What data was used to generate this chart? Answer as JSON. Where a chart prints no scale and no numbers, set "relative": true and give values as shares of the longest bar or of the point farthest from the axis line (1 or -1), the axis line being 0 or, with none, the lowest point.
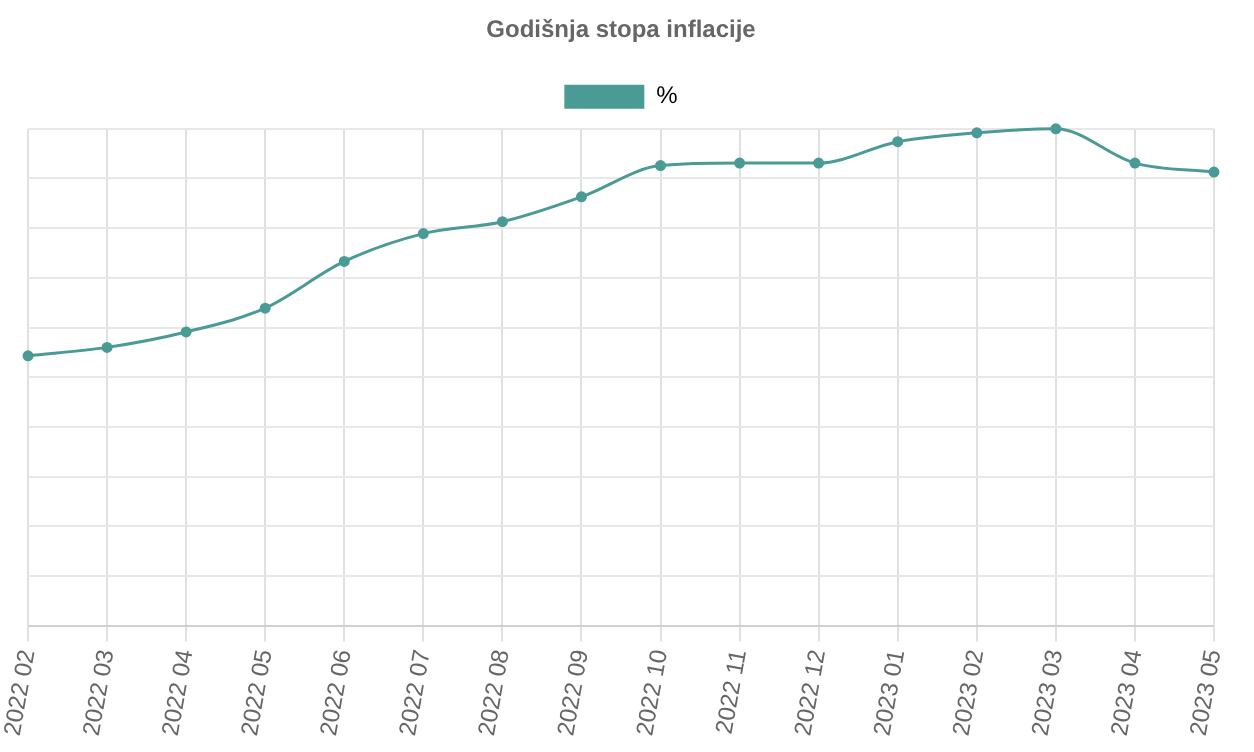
{
  "chart_data": {
    "type": "line",
    "title": "Godišnja stopa inflacije",
    "relative": true,
    "grid": true,
    "legend": "top",
    "marker": "circle",
    "line_style": "solid",
    "categories": [
      "2022 02",
      "2022 03",
      "2022 04",
      "2022 05",
      "2022 06",
      "2022 07",
      "2022 08",
      "2022 09",
      "2022 10",
      "2022 11",
      "2022 12",
      "2023 01",
      "2023 02",
      "2023 03",
      "2023 04",
      "2023 05"
    ],
    "series": [
      {
        "name": "%",
        "color": "#4a9a96",
        "values": [
          0.543,
          0.56,
          0.591,
          0.639,
          0.733,
          0.789,
          0.813,
          0.863,
          0.926,
          0.931,
          0.931,
          0.974,
          0.992,
          1,
          0.931,
          0.913
        ]
      }
    ]
  }
}
